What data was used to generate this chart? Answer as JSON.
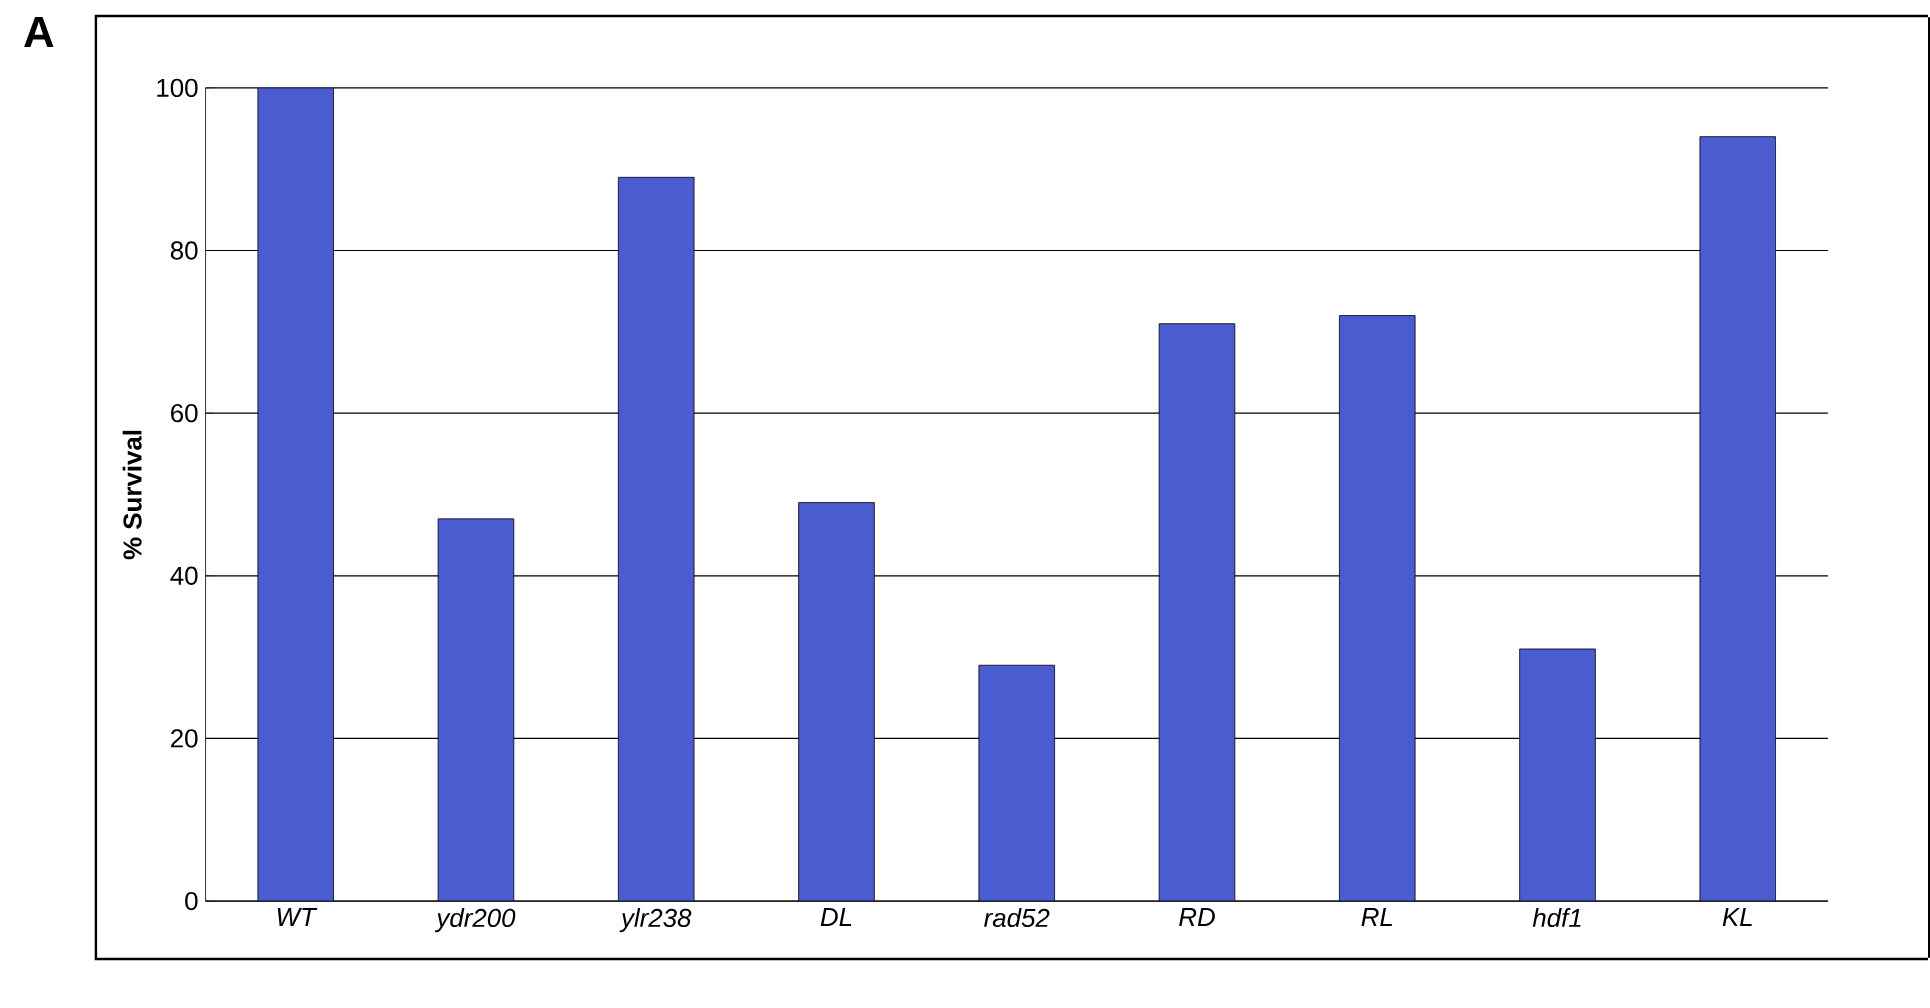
{
  "chart_data": {
    "type": "bar",
    "ylabel": "% Survival",
    "annotations": [
      "A"
    ],
    "categories": [
      "WT",
      "ydr200",
      "ylr238",
      "DL",
      "rad52",
      "RD",
      "RL",
      "hdf1",
      "KL"
    ],
    "values": [
      100,
      47,
      89,
      49,
      29,
      71,
      72,
      31,
      94
    ],
    "color": "#4b5bd0",
    "ylim": [
      0,
      100
    ],
    "yticks": [
      0,
      20,
      40,
      60,
      80,
      100
    ],
    "grid": "y"
  }
}
